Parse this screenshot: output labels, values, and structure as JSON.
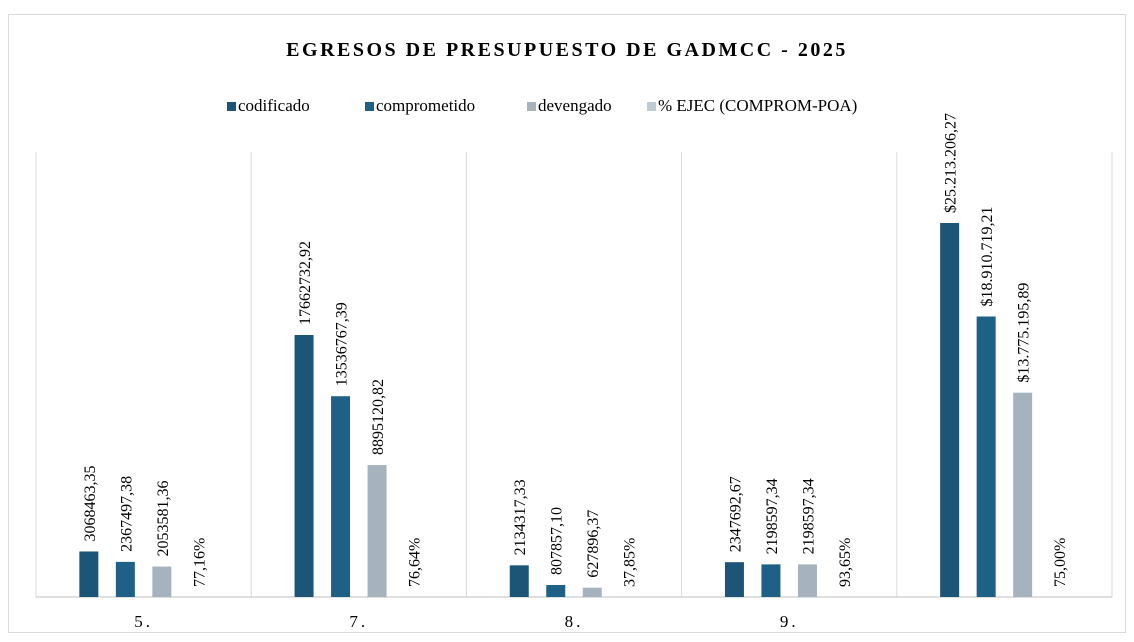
{
  "chart_data": {
    "type": "bar",
    "title": "EGRESOS DE PRESUPUESTO DE GADMCC - 2025",
    "categories": [
      "5.",
      "7.",
      "8.",
      "9.",
      null
    ],
    "series": [
      {
        "name": "codificado",
        "color": "#1c5578",
        "values": [
          3068463.35,
          17662732.92,
          2134317.33,
          2347692.67,
          25213206.27
        ],
        "value_labels": [
          "3068463,35",
          "17662732,92",
          "2134317,33",
          "2347692,67",
          "$25.213.206,27"
        ]
      },
      {
        "name": "comprometido",
        "color": "#1e6086",
        "values": [
          2367497.38,
          13536767.39,
          807857.1,
          2198597.34,
          18910719.21
        ],
        "value_labels": [
          "2367497,38",
          "13536767,39",
          "807857,10",
          "2198597,34",
          "$18.910.719,21"
        ]
      },
      {
        "name": "devengado",
        "color": "#a6b3be",
        "values": [
          2053581.36,
          8895120.82,
          627896.37,
          2198597.34,
          13775195.89
        ],
        "value_labels": [
          "2053581,36",
          "8895120,82",
          "627896,37",
          "2198597,34",
          "$13.775.195,89"
        ]
      },
      {
        "name": "% EJEC (COMPROM-POA)",
        "color": "#c0cad2",
        "values": [
          77.16,
          76.64,
          37.85,
          93.65,
          75.0
        ],
        "value_labels": [
          "77,16%",
          "76,64%",
          "37,85%",
          "93,65%",
          "75,00%"
        ]
      }
    ],
    "ylim": [
      0,
      30000000
    ]
  }
}
